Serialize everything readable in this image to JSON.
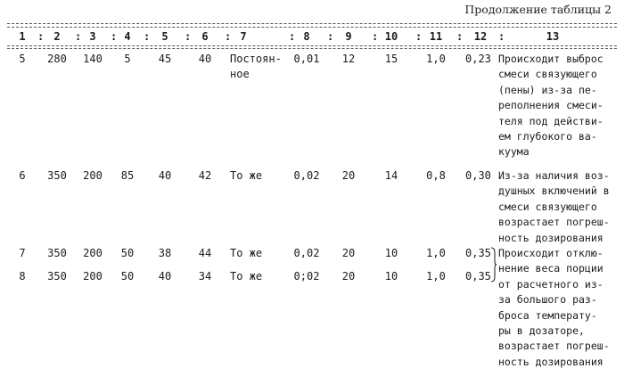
{
  "caption": "Продолжение таблицы 2",
  "header": [
    "1",
    "2",
    "3",
    "4",
    "5",
    "6",
    "7",
    "8",
    "9",
    "10",
    "11",
    "12",
    "13"
  ],
  "rows": [
    {
      "cells": [
        "5",
        "280",
        "140",
        "5",
        "45",
        "40",
        "Постоян-\nное",
        "0,01",
        "12",
        "15",
        "1,0",
        "0,23"
      ],
      "note": "Происходит выброс\nсмеси связующего\n(пены) из-за пе-\nреполнения смеси-\nтеля под действи-\nем глубокого ва-\nкуума"
    },
    {
      "cells": [
        "6",
        "350",
        "200",
        "85",
        "40",
        "42",
        "То же",
        "0,02",
        "20",
        "14",
        "0,8",
        "0,30"
      ],
      "note": "Из-за наличия воз-\nдушных включений в\nсмеси связующего\nвозрастает погреш-\nность дозирования"
    },
    {
      "cells": [
        "7",
        "350",
        "200",
        "50",
        "38",
        "44",
        "То же",
        "0,02",
        "20",
        "10",
        "1,0",
        "0,35"
      ],
      "note": "Происходит отклю-\nнение веса порции\nот расчетного из-\nза большого раз-\nброса температу-\nры в дозаторе,\nвозрастает погреш-\nность дозирования"
    },
    {
      "cells": [
        "8",
        "350",
        "200",
        "50",
        "40",
        "34",
        "То же",
        "0;02",
        "20",
        "10",
        "1,0",
        "0,35"
      ],
      "note": ""
    }
  ]
}
